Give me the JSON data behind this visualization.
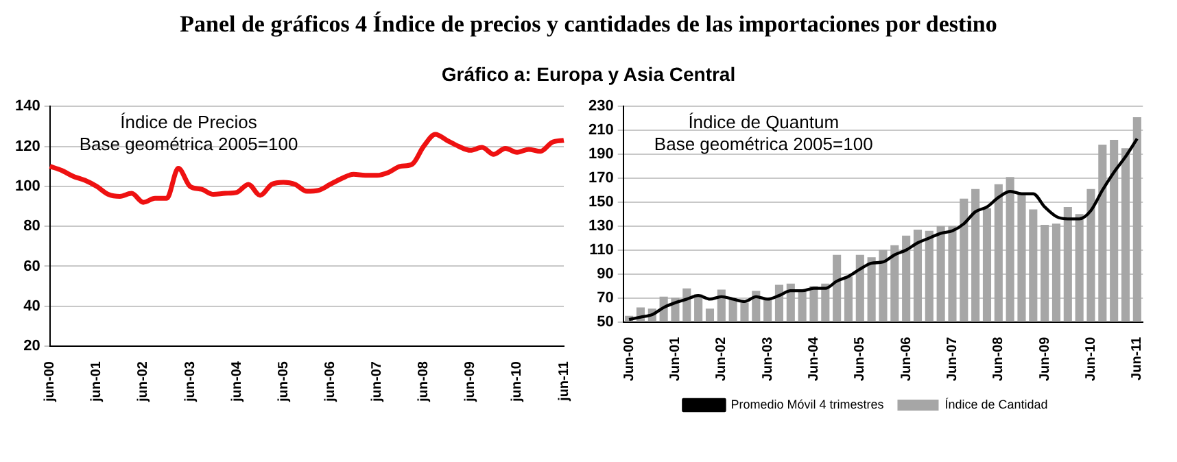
{
  "chart_data": [
    {
      "type": "line",
      "title": "Panel de gráficos 4 Índice de precios y cantidades de las importaciones por destino",
      "subtitle": "Gráfico a: Europa y Asia Central",
      "categories": [
        "jun-00",
        null,
        null,
        null,
        "jun-01",
        null,
        null,
        null,
        "jun-02",
        null,
        null,
        null,
        "jun-03",
        null,
        null,
        null,
        "jun-04",
        null,
        null,
        null,
        "jun-05",
        null,
        null,
        null,
        "jun-06",
        null,
        null,
        null,
        "jun-07",
        null,
        null,
        null,
        "jun-08",
        null,
        null,
        null,
        "jun-09",
        null,
        null,
        null,
        "jun-10",
        null,
        null,
        null,
        "jun-11"
      ],
      "series": [
        {
          "color": "#ee1111",
          "values": [
            110,
            108,
            105,
            103,
            100,
            96,
            95,
            96.5,
            92,
            94,
            94,
            109,
            100,
            98.5,
            96,
            96.5,
            97,
            101,
            95.5,
            101,
            102,
            101,
            97.5,
            98,
            101,
            104,
            106,
            105.5,
            105.5,
            107,
            110,
            111,
            120,
            126,
            123,
            120,
            118,
            119.5,
            116,
            119,
            117,
            118.5,
            117.5,
            122,
            123
          ]
        }
      ],
      "ylim": [
        20,
        140
      ],
      "yticks": [
        20,
        40,
        60,
        80,
        100,
        120,
        140
      ],
      "grid": "y",
      "marker": "none",
      "legend": false,
      "annotations": [
        "Índice de Precios",
        "Base geométrica 2005=100"
      ]
    },
    {
      "type": "bar",
      "categories": [
        "Jun-00",
        null,
        null,
        null,
        "Jun-01",
        null,
        null,
        null,
        "Jun-02",
        null,
        null,
        null,
        "Jun-03",
        null,
        null,
        null,
        "Jun-04",
        null,
        null,
        null,
        "Jun-05",
        null,
        null,
        null,
        "Jun-06",
        null,
        null,
        null,
        "Jun-07",
        null,
        null,
        null,
        "Jun-08",
        null,
        null,
        null,
        "Jun-09",
        null,
        null,
        null,
        "Jun-10",
        null,
        null,
        null,
        "Jun-11"
      ],
      "series": [
        {
          "name": "Índice de Cantidad",
          "type": "bar",
          "color": "#a6a6a6",
          "values": [
            55,
            62,
            61,
            71,
            70,
            78,
            73,
            61,
            77,
            70,
            66,
            76,
            70,
            81,
            82,
            76,
            80,
            82,
            106,
            88,
            106,
            104,
            110,
            114,
            122,
            127,
            126,
            130,
            130,
            153,
            161,
            145,
            165,
            171,
            157,
            144,
            131,
            132,
            146,
            140,
            161,
            198,
            202,
            195,
            221
          ]
        },
        {
          "name": "Promedio Móvil 4 trimestres",
          "type": "line",
          "color": "#000000",
          "values": [
            52,
            54,
            56,
            62,
            66,
            69,
            72,
            69,
            71,
            69,
            67,
            71,
            69,
            72,
            76,
            76,
            78,
            78,
            84,
            88,
            94,
            99,
            100,
            106,
            110,
            116,
            120,
            124,
            126,
            132,
            142,
            146,
            154,
            159,
            157,
            157,
            146,
            138,
            136,
            136,
            143,
            160,
            175,
            188,
            203
          ]
        }
      ],
      "ylim": [
        50,
        230
      ],
      "yticks": [
        50,
        70,
        90,
        110,
        130,
        150,
        170,
        190,
        210,
        230
      ],
      "grid": "y",
      "marker": "none",
      "legend": "bottom",
      "annotations": [
        "Índice de Quantum",
        "Base geométrica 2005=100"
      ]
    }
  ]
}
